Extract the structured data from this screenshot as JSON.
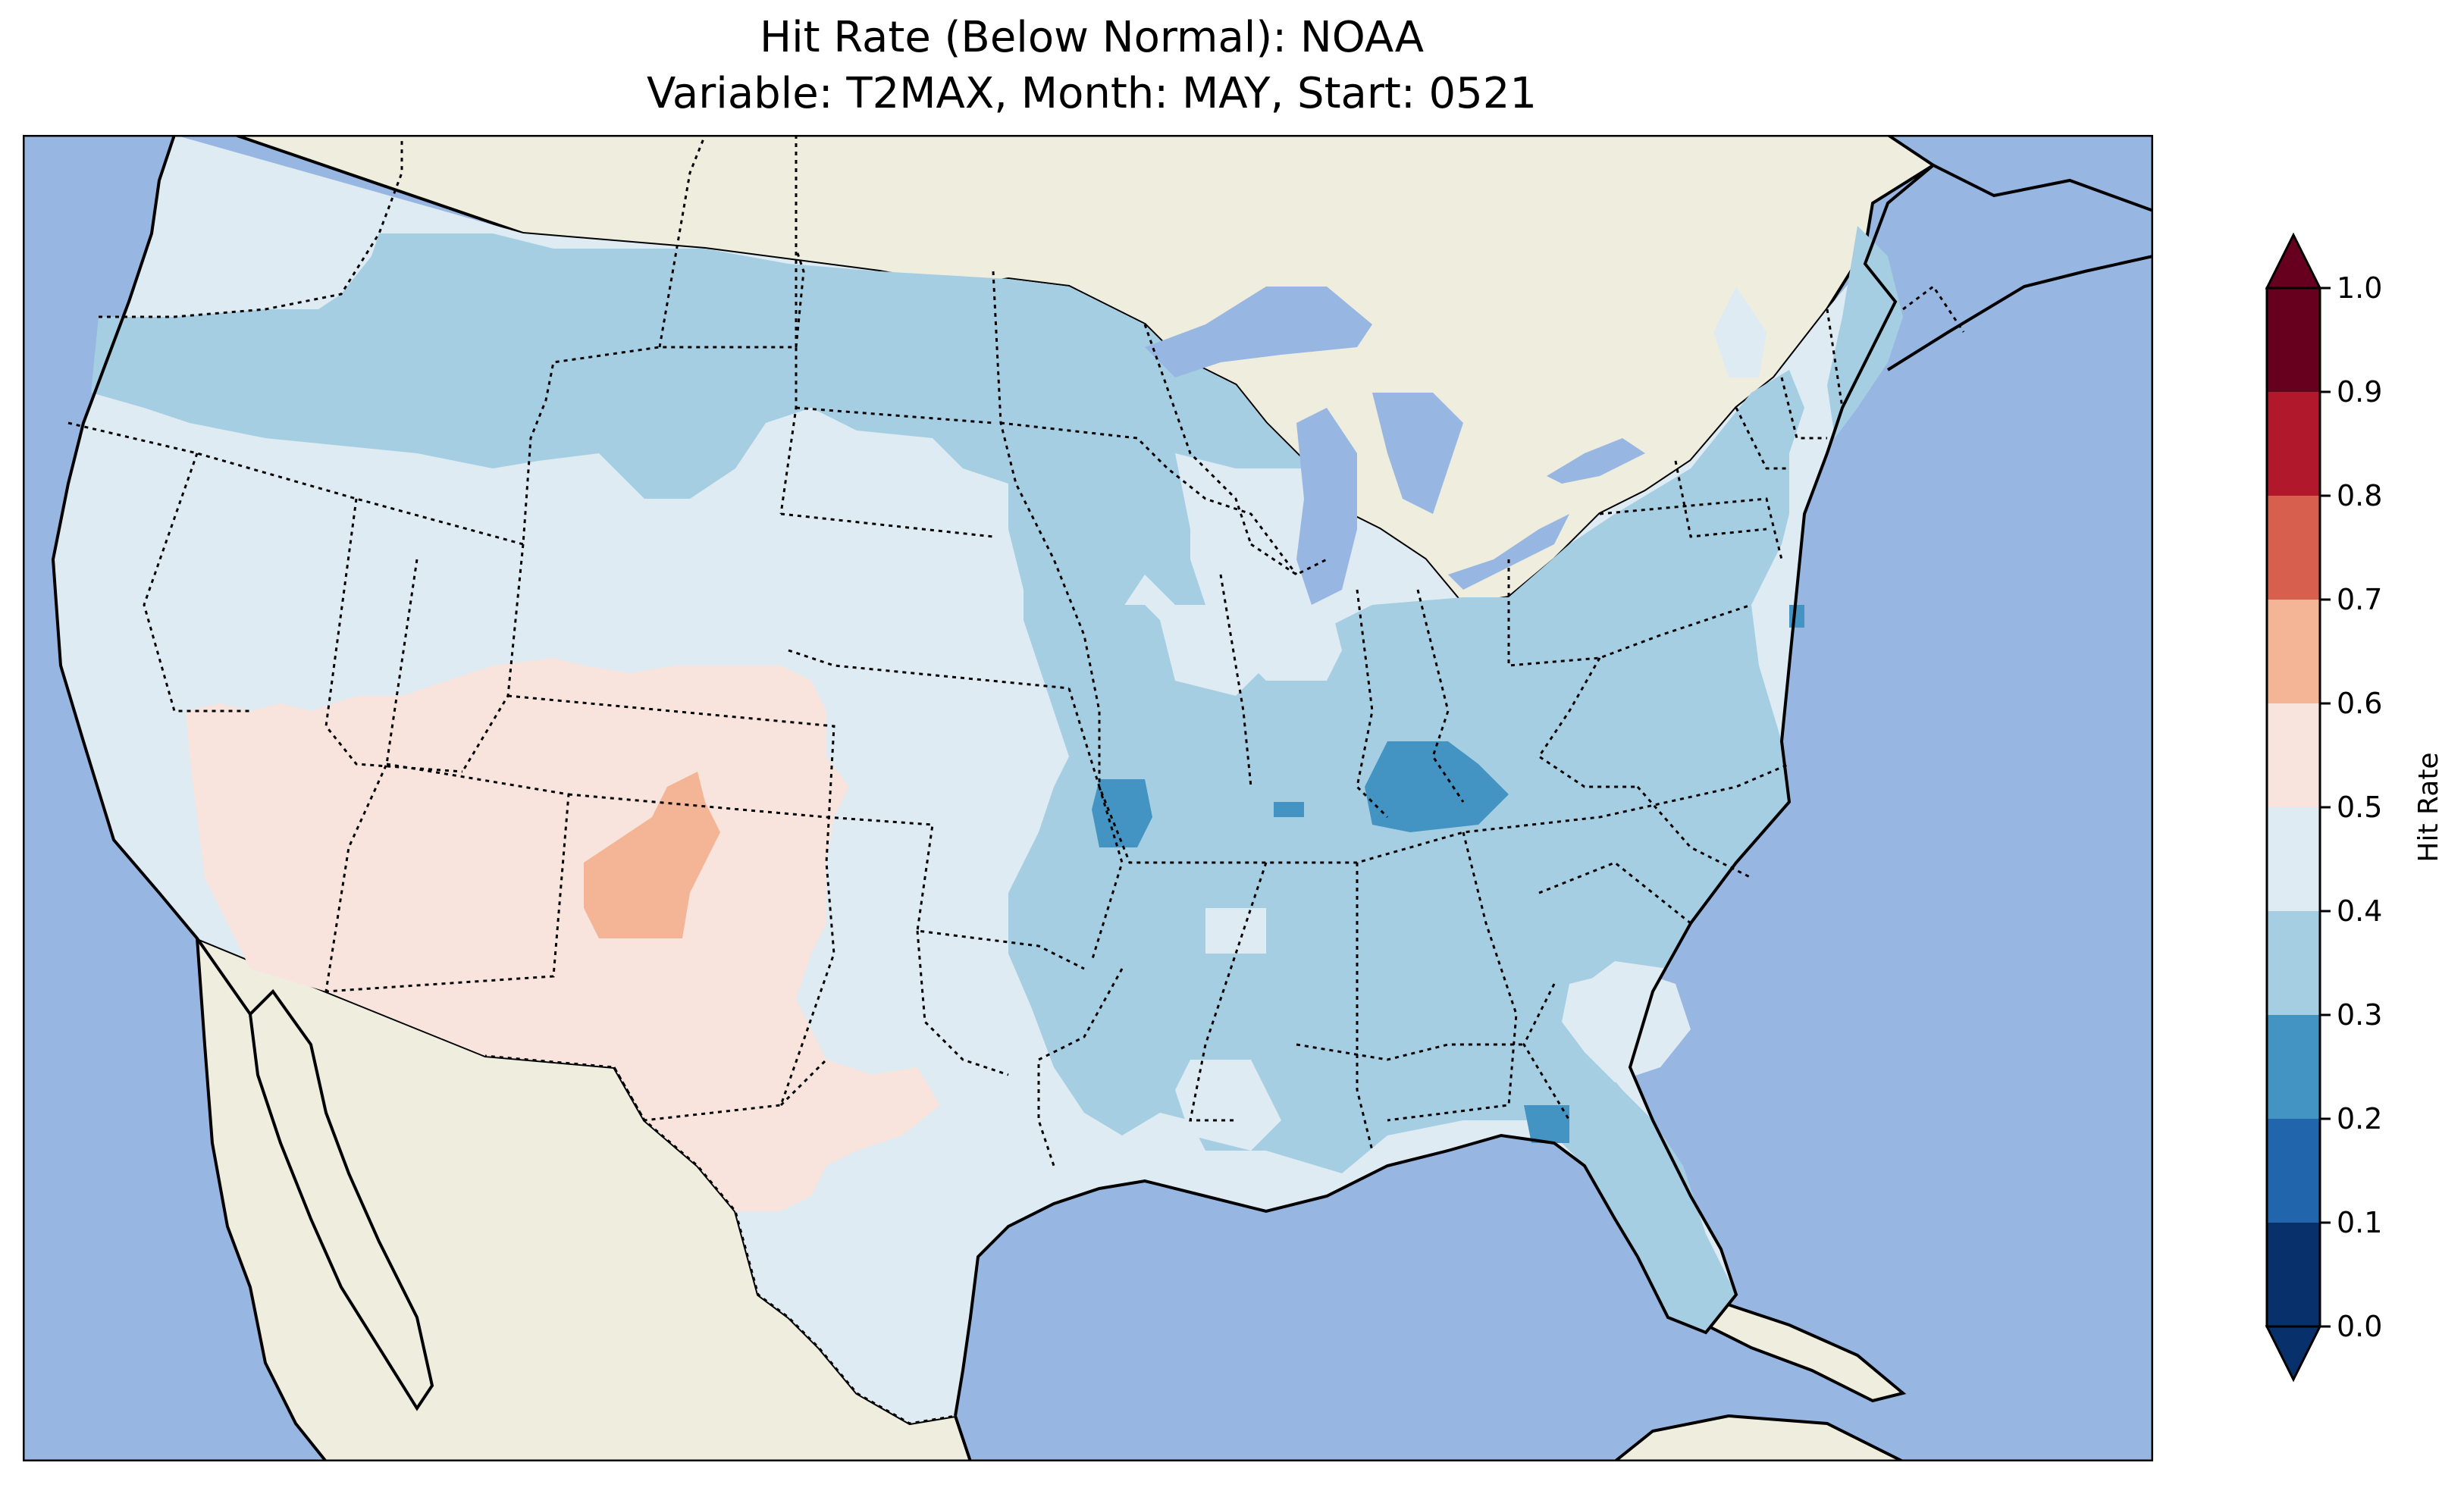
{
  "title": {
    "line1": "Hit Rate (Below Normal): NOAA",
    "line2": "Variable: T2MAX, Month: MAY, Start: 0521"
  },
  "colorbar": {
    "label": "Hit Rate",
    "ticks": [
      "0.0",
      "0.1",
      "0.2",
      "0.3",
      "0.4",
      "0.5",
      "0.6",
      "0.7",
      "0.8",
      "0.9",
      "1.0"
    ],
    "bins": [
      {
        "range": [
          0.0,
          0.1
        ],
        "color": "#08306b"
      },
      {
        "range": [
          0.1,
          0.2
        ],
        "color": "#2166ac"
      },
      {
        "range": [
          0.2,
          0.3
        ],
        "color": "#4393c3"
      },
      {
        "range": [
          0.3,
          0.4
        ],
        "color": "#a6cee3"
      },
      {
        "range": [
          0.4,
          0.5
        ],
        "color": "#deebf3"
      },
      {
        "range": [
          0.5,
          0.6
        ],
        "color": "#f8e4dc"
      },
      {
        "range": [
          0.6,
          0.7
        ],
        "color": "#f4b496"
      },
      {
        "range": [
          0.7,
          0.8
        ],
        "color": "#d6604d"
      },
      {
        "range": [
          0.8,
          0.9
        ],
        "color": "#b2182b"
      },
      {
        "range": [
          0.9,
          1.0
        ],
        "color": "#67001f"
      }
    ],
    "extend_low_color": "#08306b",
    "extend_high_color": "#67001f"
  },
  "colors": {
    "ocean": "#97b6e1",
    "land": "#efedde",
    "coast": "#000000"
  },
  "map_regions": [
    {
      "region": "Pacific Northwest / Northern Rockies / Northern Plains / Midwest / East",
      "hit_rate_bin": "0.3-0.4"
    },
    {
      "region": "Great Basin / California / Southern Plains / Texas / Upper Great Lakes",
      "hit_rate_bin": "0.4-0.5"
    },
    {
      "region": "Desert Southwest / Four Corners",
      "hit_rate_bin": "0.5-0.6"
    },
    {
      "region": "Northern New Mexico",
      "hit_rate_bin": "0.6-0.7"
    },
    {
      "region": "Missouri / Kentucky / Florida panhandle spots",
      "hit_rate_bin": "0.2-0.3"
    }
  ]
}
